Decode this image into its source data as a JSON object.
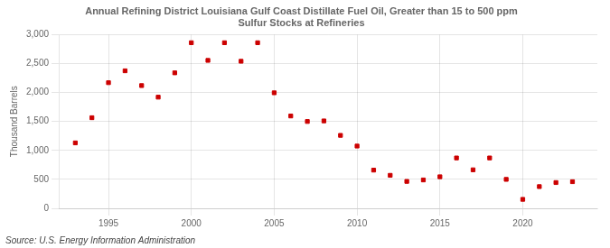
{
  "chart_data": {
    "type": "scatter",
    "title": "Annual Refining District Louisiana Gulf Coast Distillate Fuel Oil, Greater than 15 to 500 ppm\nSulfur Stocks at Refineries",
    "ylabel": "Thousand Barrels",
    "source": "Source: U.S. Energy Information Administration",
    "x": [
      1993,
      1994,
      1995,
      1996,
      1997,
      1998,
      1999,
      2000,
      2001,
      2002,
      2003,
      2004,
      2005,
      2006,
      2007,
      2008,
      2009,
      2010,
      2011,
      2012,
      2013,
      2014,
      2015,
      2016,
      2017,
      2018,
      2019,
      2020,
      2021,
      2022,
      2023
    ],
    "values": [
      1130,
      1565,
      2170,
      2375,
      2120,
      1920,
      2340,
      2860,
      2555,
      2860,
      2540,
      2860,
      1995,
      1595,
      1500,
      1510,
      1260,
      1075,
      660,
      570,
      465,
      490,
      545,
      870,
      665,
      870,
      500,
      155,
      375,
      445,
      460
    ],
    "color": "#cc0000",
    "marker": "square",
    "xlim": [
      1992,
      2024.5
    ],
    "xticks": [
      1995,
      2000,
      2005,
      2010,
      2015,
      2020
    ],
    "ylim": [
      0,
      3000
    ],
    "yticks": [
      0,
      500,
      {
        "value": 1000,
        "label": "1,000"
      },
      {
        "value": 1500,
        "label": "1,500"
      },
      {
        "value": 2000,
        "label": "2,000"
      },
      {
        "value": 2500,
        "label": "2,500"
      },
      {
        "value": 3000,
        "label": "3,000"
      }
    ],
    "grid": true
  }
}
